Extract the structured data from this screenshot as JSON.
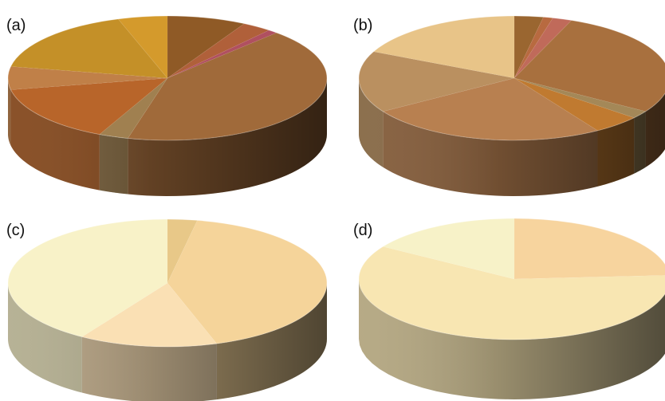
{
  "chart_data": [
    {
      "type": "pie",
      "panel_label": "(a)",
      "style": "3d-tilted",
      "slices": [
        {
          "value": 8,
          "color": "#8f5a26"
        },
        {
          "value": 3,
          "color": "#b0603a"
        },
        {
          "value": 1,
          "color": "#b05060"
        },
        {
          "value": 42,
          "color": "#a06a3a"
        },
        {
          "value": 3,
          "color": "#a08050"
        },
        {
          "value": 15,
          "color": "#b8652a"
        },
        {
          "value": 6,
          "color": "#c08048"
        },
        {
          "value": 17,
          "color": "#c49028"
        },
        {
          "value": 5,
          "color": "#d49a2c"
        }
      ]
    },
    {
      "type": "pie",
      "panel_label": "(b)",
      "style": "3d-tilted",
      "slices": [
        {
          "value": 3,
          "color": "#9a6630"
        },
        {
          "value": 1,
          "color": "#b86a40"
        },
        {
          "value": 2,
          "color": "#c06a5a"
        },
        {
          "value": 28,
          "color": "#a8703e"
        },
        {
          "value": 2,
          "color": "#a48858"
        },
        {
          "value": 5,
          "color": "#c07a30"
        },
        {
          "value": 25,
          "color": "#b88050"
        },
        {
          "value": 16,
          "color": "#ba9060"
        },
        {
          "value": 18,
          "color": "#e8c488"
        }
      ]
    },
    {
      "type": "pie",
      "panel_label": "(c)",
      "style": "3d-tilted",
      "slices": [
        {
          "value": 3,
          "color": "#e8c888"
        },
        {
          "value": 42,
          "color": "#f5d49a"
        },
        {
          "value": 14,
          "color": "#fae0b4"
        },
        {
          "value": 41,
          "color": "#f8f2c8"
        }
      ]
    },
    {
      "type": "pie",
      "panel_label": "(d)",
      "style": "3d-tilted",
      "slices": [
        {
          "value": 24,
          "color": "#f7d49e"
        },
        {
          "value": 60,
          "color": "#f8e6b2"
        },
        {
          "value": 16,
          "color": "#f7f2c8"
        }
      ]
    }
  ]
}
